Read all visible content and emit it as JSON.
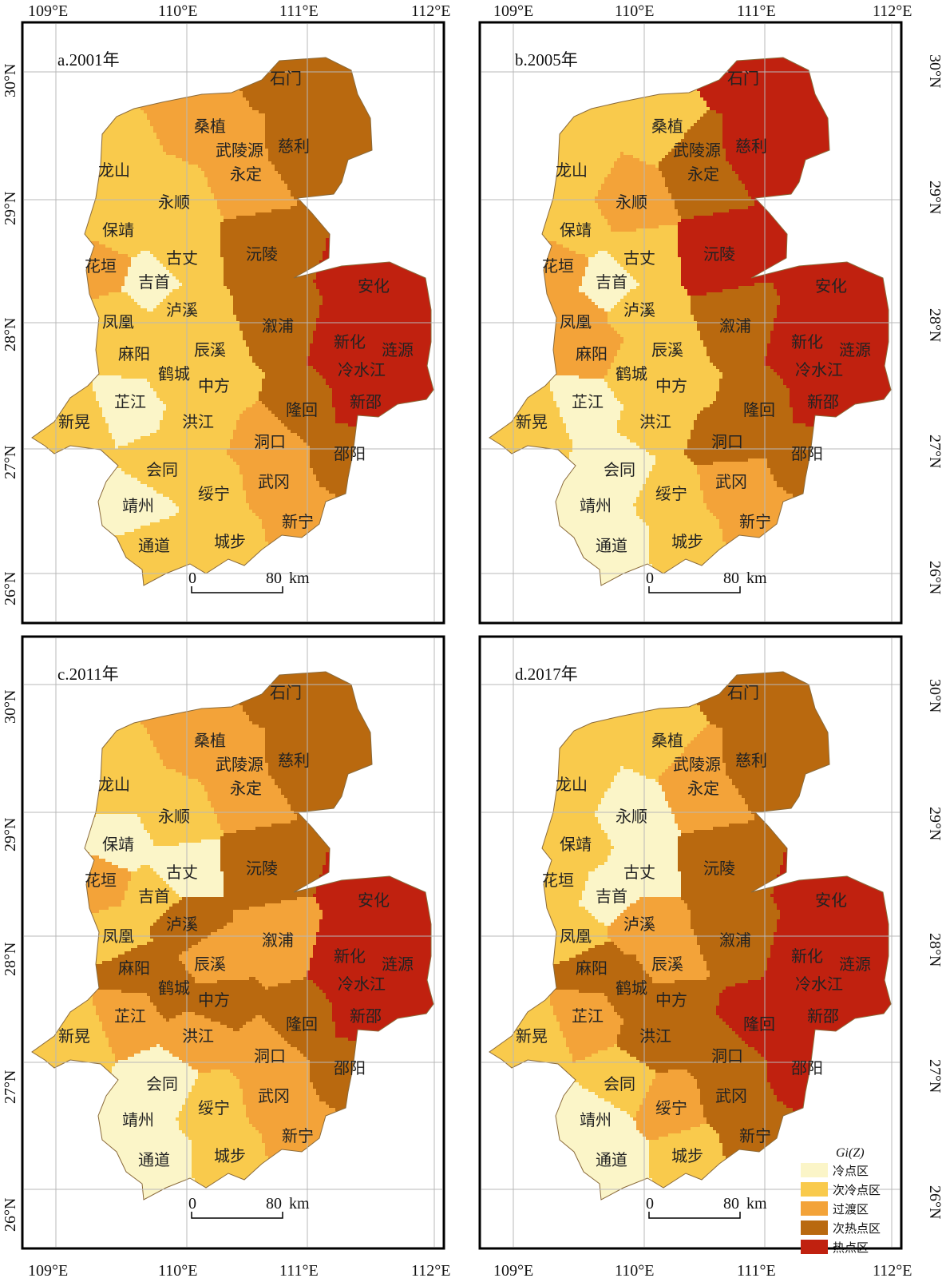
{
  "top_lon_labels": [
    "109°E",
    "110°E",
    "111°E",
    "112°E"
  ],
  "bottom_lon_labels": [
    "109°E",
    "110°E",
    "111°E",
    "112°E"
  ],
  "lat_labels": [
    "30°N",
    "29°N",
    "28°N",
    "27°N",
    "26°N"
  ],
  "scale_bar": {
    "start": "0",
    "end": "80",
    "unit": "km"
  },
  "legend": {
    "title": "Gi(Z)",
    "classes": [
      {
        "key": "cold",
        "label": "冷点区",
        "color": "#fbf5c8"
      },
      {
        "key": "subcold",
        "label": "次冷点区",
        "color": "#f9ca4c"
      },
      {
        "key": "transition",
        "label": "过渡区",
        "color": "#f3a339"
      },
      {
        "key": "subhot",
        "label": "次热点区",
        "color": "#b9690f"
      },
      {
        "key": "hot",
        "label": "热点区",
        "color": "#c0210f"
      }
    ]
  },
  "counties": [
    "石门",
    "桑植",
    "武陵源",
    "慈利",
    "永定",
    "龙山",
    "永顺",
    "保靖",
    "古丈",
    "沅陵",
    "花垣",
    "吉首",
    "安化",
    "凤凰",
    "泸溪",
    "溆浦",
    "新化",
    "涟源",
    "麻阳",
    "辰溪",
    "鹤城",
    "中方",
    "冷水江",
    "芷江",
    "新邵",
    "新晃",
    "洪江",
    "隆回",
    "洞口",
    "会同",
    "邵阳",
    "武冈",
    "绥宁",
    "靖州",
    "新宁",
    "通道",
    "城步"
  ],
  "panels": [
    {
      "title": "a.2001年",
      "classes": {
        "石门": "subhot",
        "桑植": "transition",
        "武陵源": "transition",
        "慈利": "subhot",
        "永定": "transition",
        "龙山": "subcold",
        "永顺": "subcold",
        "保靖": "subcold",
        "古丈": "subcold",
        "沅陵": "subhot",
        "花垣": "transition",
        "吉首": "cold",
        "安化": "hot",
        "凤凰": "subcold",
        "泸溪": "subcold",
        "溆浦": "subhot",
        "新化": "hot",
        "涟源": "hot",
        "麻阳": "subcold",
        "辰溪": "subcold",
        "鹤城": "subcold",
        "中方": "subcold",
        "冷水江": "hot",
        "芷江": "cold",
        "新邵": "hot",
        "新晃": "subcold",
        "洪江": "subcold",
        "隆回": "subhot",
        "洞口": "transition",
        "会同": "subcold",
        "邵阳": "subhot",
        "武冈": "transition",
        "绥宁": "subcold",
        "靖州": "cold",
        "新宁": "transition",
        "通道": "subcold",
        "城步": "subcold"
      }
    },
    {
      "title": "b.2005年",
      "classes": {
        "石门": "hot",
        "桑植": "subcold",
        "武陵源": "subhot",
        "慈利": "hot",
        "永定": "subhot",
        "龙山": "subcold",
        "永顺": "transition",
        "保靖": "subcold",
        "古丈": "subcold",
        "沅陵": "hot",
        "花垣": "transition",
        "吉首": "cold",
        "安化": "hot",
        "凤凰": "transition",
        "泸溪": "subcold",
        "溆浦": "subhot",
        "新化": "hot",
        "涟源": "hot",
        "麻阳": "transition",
        "辰溪": "subcold",
        "鹤城": "subcold",
        "中方": "subcold",
        "冷水江": "hot",
        "芷江": "cold",
        "新邵": "hot",
        "新晃": "subcold",
        "洪江": "subcold",
        "隆回": "subhot",
        "洞口": "subhot",
        "会同": "cold",
        "邵阳": "subhot",
        "武冈": "transition",
        "绥宁": "subcold",
        "靖州": "cold",
        "新宁": "transition",
        "通道": "cold",
        "城步": "subcold"
      }
    },
    {
      "title": "c.2011年",
      "classes": {
        "石门": "subhot",
        "桑植": "transition",
        "武陵源": "transition",
        "慈利": "subhot",
        "永定": "transition",
        "龙山": "subcold",
        "永顺": "subcold",
        "保靖": "cold",
        "古丈": "cold",
        "沅陵": "subhot",
        "花垣": "transition",
        "吉首": "subcold",
        "安化": "hot",
        "凤凰": "subcold",
        "泸溪": "subhot",
        "溆浦": "transition",
        "新化": "hot",
        "涟源": "hot",
        "麻阳": "subhot",
        "辰溪": "transition",
        "鹤城": "subhot",
        "中方": "subhot",
        "冷水江": "hot",
        "芷江": "transition",
        "新邵": "hot",
        "新晃": "subcold",
        "洪江": "transition",
        "隆回": "subhot",
        "洞口": "transition",
        "会同": "cold",
        "邵阳": "subhot",
        "武冈": "transition",
        "绥宁": "subcold",
        "靖州": "cold",
        "新宁": "transition",
        "通道": "cold",
        "城步": "subcold"
      }
    },
    {
      "title": "d.2017年",
      "classes": {
        "石门": "subhot",
        "桑植": "subcold",
        "武陵源": "transition",
        "慈利": "subhot",
        "永定": "transition",
        "龙山": "subcold",
        "永顺": "cold",
        "保靖": "subcold",
        "古丈": "cold",
        "沅陵": "subhot",
        "花垣": "subcold",
        "吉首": "cold",
        "安化": "hot",
        "凤凰": "subcold",
        "泸溪": "transition",
        "溆浦": "subhot",
        "新化": "hot",
        "涟源": "hot",
        "麻阳": "subhot",
        "辰溪": "transition",
        "鹤城": "subhot",
        "中方": "subhot",
        "冷水江": "hot",
        "芷江": "transition",
        "新邵": "hot",
        "新晃": "subcold",
        "洪江": "subhot",
        "隆回": "hot",
        "洞口": "subhot",
        "会同": "subcold",
        "邵阳": "hot",
        "武冈": "subhot",
        "绥宁": "transition",
        "靖州": "cold",
        "新宁": "subhot",
        "通道": "cold",
        "城步": "subcold"
      }
    }
  ]
}
